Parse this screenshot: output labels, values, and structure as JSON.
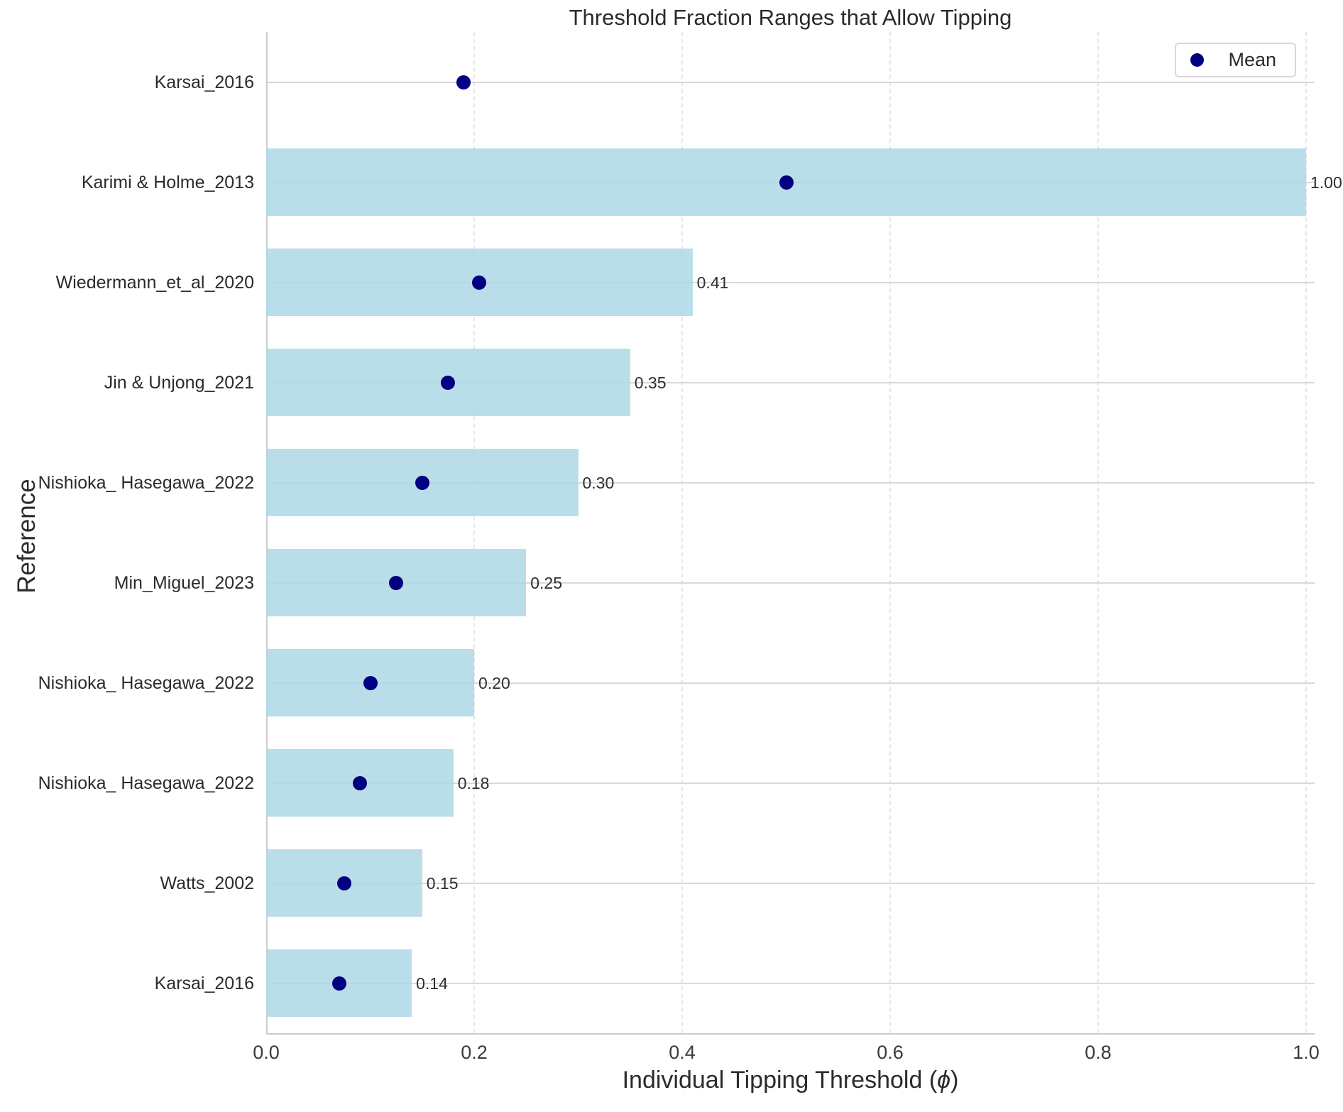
{
  "chart_data": {
    "type": "bar",
    "orientation": "horizontal",
    "title": "Threshold Fraction Ranges that Allow Tipping",
    "ylabel": "Reference",
    "xlabel_prefix": "Individual Tipping Threshold (",
    "xlabel_symbol": "ϕ",
    "xlabel_suffix": ")",
    "xlim": [
      0.0,
      1.0
    ],
    "xticks": [
      0.0,
      0.2,
      0.4,
      0.6,
      0.8,
      1.0
    ],
    "xtick_labels": [
      "0.0",
      "0.2",
      "0.4",
      "0.6",
      "0.8",
      "1.0"
    ],
    "grid": "horizontal solid, vertical dashed",
    "legend": {
      "label": "Mean",
      "position": "upper right"
    },
    "colors": {
      "bar": "#ADD8E6",
      "mean_dot": "#000080",
      "gridline": "#D9D9D9",
      "text": "#262626"
    },
    "rows": [
      {
        "label": "Karsai_2016",
        "range_min": null,
        "range_max": null,
        "bar_label": "",
        "mean": 0.19
      },
      {
        "label": "Karimi & Holme_2013",
        "range_min": 0.0,
        "range_max": 1.0,
        "bar_label": "1.00",
        "mean": 0.5
      },
      {
        "label": "Wiedermann_et_al_2020",
        "range_min": 0.0,
        "range_max": 0.41,
        "bar_label": "0.41",
        "mean": 0.205
      },
      {
        "label": "Jin & Unjong_2021",
        "range_min": 0.0,
        "range_max": 0.35,
        "bar_label": "0.35",
        "mean": 0.175
      },
      {
        "label": "Nishioka_ Hasegawa_2022",
        "range_min": 0.0,
        "range_max": 0.3,
        "bar_label": "0.30",
        "mean": 0.15
      },
      {
        "label": "Min_Miguel_2023",
        "range_min": 0.0,
        "range_max": 0.25,
        "bar_label": "0.25",
        "mean": 0.125
      },
      {
        "label": "Nishioka_ Hasegawa_2022",
        "range_min": 0.0,
        "range_max": 0.2,
        "bar_label": "0.20",
        "mean": 0.1
      },
      {
        "label": "Nishioka_ Hasegawa_2022",
        "range_min": 0.0,
        "range_max": 0.18,
        "bar_label": "0.18",
        "mean": 0.09
      },
      {
        "label": "Watts_2002",
        "range_min": 0.0,
        "range_max": 0.15,
        "bar_label": "0.15",
        "mean": 0.075
      },
      {
        "label": "Karsai_2016",
        "range_min": 0.0,
        "range_max": 0.14,
        "bar_label": "0.14",
        "mean": 0.07
      }
    ]
  }
}
